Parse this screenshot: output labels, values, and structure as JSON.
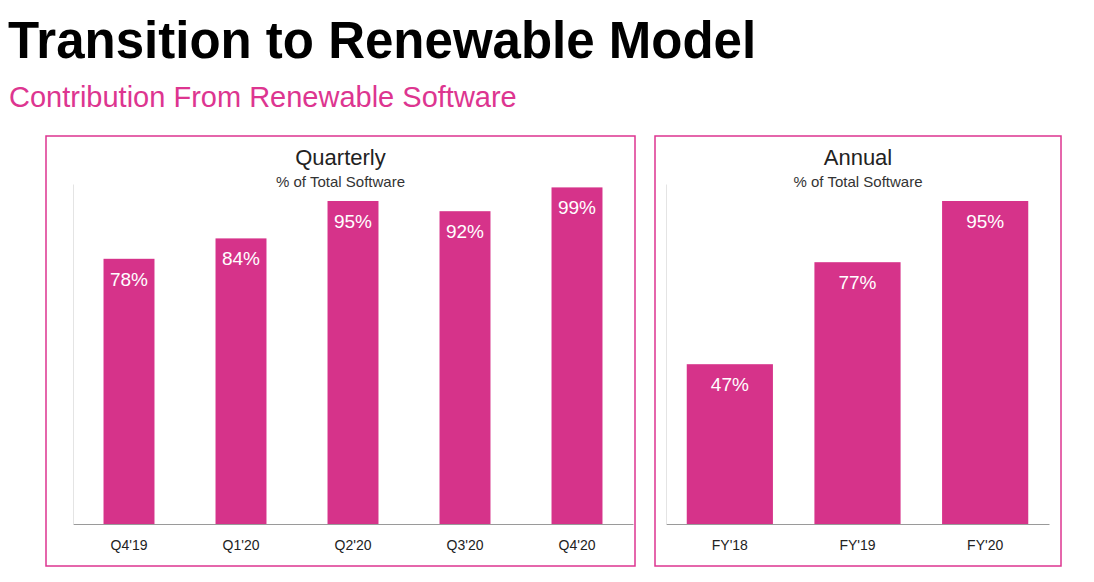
{
  "header": {
    "title": "Transition to Renewable Model",
    "subtitle": "Contribution From Renewable Software"
  },
  "chart_data": [
    {
      "type": "bar",
      "title": "Quarterly",
      "subtitle": "% of Total Software",
      "categories": [
        "Q4'19",
        "Q1'20",
        "Q2'20",
        "Q3'20",
        "Q4'20"
      ],
      "values": [
        78,
        84,
        95,
        92,
        99
      ],
      "value_labels": [
        "78%",
        "84%",
        "95%",
        "92%",
        "99%"
      ],
      "color": "#d6338a",
      "ylim": [
        0,
        100
      ],
      "grid": false,
      "data_labels": true,
      "tick_labels": "x"
    },
    {
      "type": "bar",
      "title": "Annual",
      "subtitle": "% of Total Software",
      "categories": [
        "FY'18",
        "FY'19",
        "FY'20"
      ],
      "values": [
        47,
        77,
        95
      ],
      "value_labels": [
        "47%",
        "77%",
        "95%"
      ],
      "color": "#d6338a",
      "ylim": [
        0,
        100
      ],
      "grid": false,
      "data_labels": true,
      "tick_labels": "x"
    }
  ]
}
